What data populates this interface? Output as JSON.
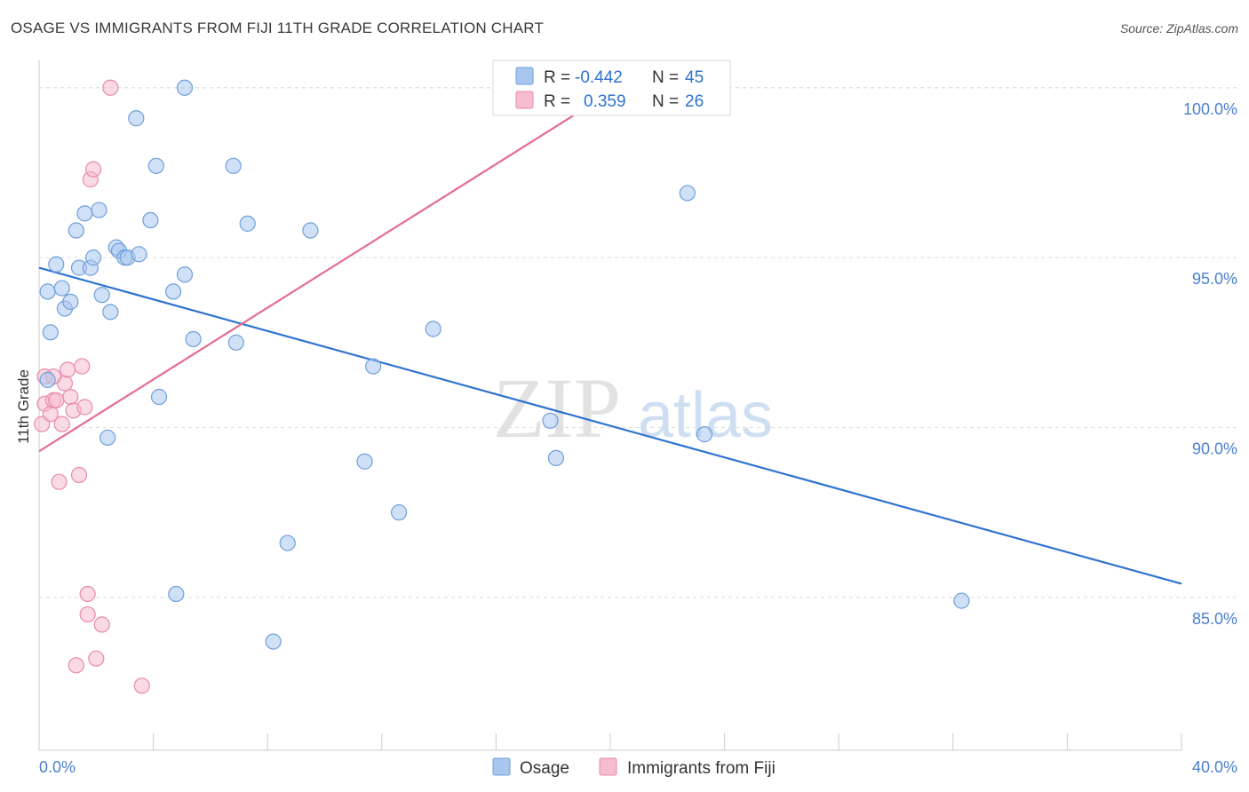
{
  "title": "OSAGE VS IMMIGRANTS FROM FIJI 11TH GRADE CORRELATION CHART",
  "source": "Source: ZipAtlas.com",
  "watermark": {
    "zip": "ZIP",
    "atlas": "atlas"
  },
  "colors": {
    "osage_fill": "#a9c7ee",
    "osage_stroke": "#6f9fdc",
    "osage_line": "#2f73d0",
    "fiji_fill": "#f6bcd0",
    "fiji_stroke": "#e98aab",
    "fiji_line": "#e56b95",
    "grid": "#dddddd",
    "tick_text": "#4a7fcf"
  },
  "legend": {
    "rows": [
      {
        "r_label": "R =",
        "r_value": "-0.442",
        "n_label": "N =",
        "n_value": "45"
      },
      {
        "r_label": "R =",
        "r_value": "0.359",
        "n_label": "N =",
        "n_value": "26"
      }
    ]
  },
  "bottom_legend": [
    "Osage",
    "Immigrants from Fiji"
  ],
  "chart_data": {
    "type": "scatter",
    "title": "OSAGE VS IMMIGRANTS FROM FIJI 11TH GRADE CORRELATION CHART",
    "xlabel": "",
    "ylabel": "11th Grade",
    "xlim": [
      0,
      40
    ],
    "ylim": [
      80.5,
      100.7
    ],
    "x_tick_labels": [
      "0.0%",
      "40.0%"
    ],
    "y_ticks": [
      85,
      90,
      95,
      100
    ],
    "y_tick_labels": [
      "85.0%",
      "90.0%",
      "95.0%",
      "100.0%"
    ],
    "grid": true,
    "legend_position": "top-center",
    "series": [
      {
        "name": "Osage",
        "points": [
          [
            0.3,
            91.4
          ],
          [
            0.3,
            94.0
          ],
          [
            0.4,
            92.8
          ],
          [
            0.6,
            94.8
          ],
          [
            0.8,
            94.1
          ],
          [
            0.9,
            93.5
          ],
          [
            1.1,
            93.7
          ],
          [
            1.3,
            95.8
          ],
          [
            1.4,
            94.7
          ],
          [
            1.6,
            96.3
          ],
          [
            1.8,
            94.7
          ],
          [
            1.9,
            95.0
          ],
          [
            2.1,
            96.4
          ],
          [
            2.2,
            93.9
          ],
          [
            2.4,
            89.7
          ],
          [
            2.5,
            93.4
          ],
          [
            2.7,
            95.3
          ],
          [
            2.8,
            95.2
          ],
          [
            3.0,
            95.0
          ],
          [
            3.1,
            95.0
          ],
          [
            3.4,
            99.1
          ],
          [
            3.5,
            95.1
          ],
          [
            3.9,
            96.1
          ],
          [
            4.1,
            97.7
          ],
          [
            4.2,
            90.9
          ],
          [
            4.7,
            94.0
          ],
          [
            4.8,
            85.1
          ],
          [
            5.1,
            94.5
          ],
          [
            5.1,
            100.0
          ],
          [
            5.4,
            92.6
          ],
          [
            6.8,
            97.7
          ],
          [
            6.9,
            92.5
          ],
          [
            7.3,
            96.0
          ],
          [
            8.2,
            83.7
          ],
          [
            8.7,
            86.6
          ],
          [
            9.5,
            95.8
          ],
          [
            11.4,
            89.0
          ],
          [
            11.7,
            91.8
          ],
          [
            12.6,
            87.5
          ],
          [
            13.8,
            92.9
          ],
          [
            17.9,
            90.2
          ],
          [
            18.1,
            89.1
          ],
          [
            22.7,
            96.9
          ],
          [
            23.3,
            89.8
          ],
          [
            32.3,
            84.9
          ]
        ],
        "trend": [
          [
            0,
            94.7
          ],
          [
            40,
            85.4
          ]
        ]
      },
      {
        "name": "Immigrants from Fiji",
        "points": [
          [
            0.1,
            90.1
          ],
          [
            0.2,
            91.5
          ],
          [
            0.2,
            90.7
          ],
          [
            0.4,
            90.4
          ],
          [
            0.5,
            90.8
          ],
          [
            0.6,
            90.8
          ],
          [
            0.7,
            88.4
          ],
          [
            0.8,
            90.1
          ],
          [
            0.9,
            91.3
          ],
          [
            1.0,
            91.7
          ],
          [
            1.1,
            90.9
          ],
          [
            1.2,
            90.5
          ],
          [
            1.3,
            83.0
          ],
          [
            1.4,
            88.6
          ],
          [
            1.5,
            91.8
          ],
          [
            1.6,
            90.6
          ],
          [
            1.7,
            85.1
          ],
          [
            1.7,
            84.5
          ],
          [
            1.8,
            97.3
          ],
          [
            1.9,
            97.6
          ],
          [
            2.0,
            83.2
          ],
          [
            2.2,
            84.2
          ],
          [
            2.5,
            100.0
          ],
          [
            3.6,
            82.4
          ],
          [
            18.0,
            100.0
          ],
          [
            0.5,
            91.5
          ]
        ],
        "trend": [
          [
            0,
            89.3
          ],
          [
            19.5,
            99.6
          ]
        ]
      }
    ]
  }
}
